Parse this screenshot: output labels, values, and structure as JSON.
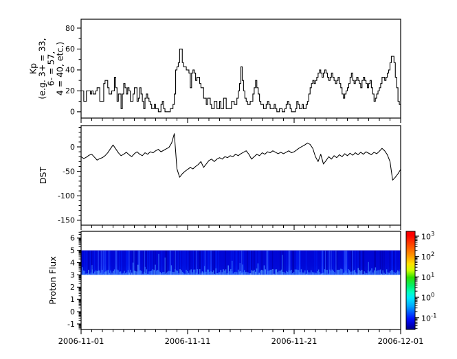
{
  "xaxis": {
    "tick_labels": [
      "2006-11-01",
      "2006-11-11",
      "2006-11-21",
      "2006-12-01"
    ],
    "tick_positions_days": [
      0,
      10,
      20,
      30
    ],
    "minor_every_days": 1,
    "span_days": 30
  },
  "chart_data": [
    {
      "type": "line",
      "subtype": "step",
      "name": "Kp",
      "ylabel_lines": [
        "Kp",
        "(e.g. 3+ = 33,",
        "6- = 57,",
        "4 = 40, etc.)"
      ],
      "ytick_values": [
        80,
        60,
        40,
        20,
        0
      ],
      "ytick_labels": [
        "80",
        "60",
        "40",
        "20",
        "0"
      ],
      "yminor_values": [
        10,
        30,
        50,
        70
      ],
      "ylim": [
        -6,
        88.5
      ],
      "x_start": "2006-11-01",
      "x_end": "2006-12-01",
      "samples_per_day": 8,
      "line_color": "#000000",
      "values": [
        20,
        20,
        10,
        10,
        20,
        20,
        20,
        17,
        20,
        17,
        17,
        20,
        23,
        23,
        10,
        10,
        10,
        27,
        30,
        30,
        23,
        17,
        17,
        20,
        20,
        33,
        23,
        10,
        17,
        17,
        3,
        17,
        27,
        23,
        17,
        23,
        20,
        10,
        10,
        17,
        23,
        23,
        10,
        13,
        23,
        17,
        10,
        3,
        13,
        17,
        13,
        10,
        7,
        3,
        3,
        7,
        3,
        3,
        0,
        0,
        7,
        10,
        3,
        0,
        0,
        0,
        0,
        3,
        3,
        7,
        17,
        40,
        43,
        47,
        60,
        60,
        47,
        43,
        43,
        40,
        40,
        37,
        23,
        37,
        40,
        37,
        30,
        33,
        33,
        27,
        23,
        23,
        13,
        13,
        7,
        13,
        13,
        7,
        3,
        3,
        10,
        10,
        3,
        3,
        10,
        3,
        3,
        13,
        13,
        3,
        3,
        3,
        3,
        10,
        10,
        7,
        7,
        13,
        20,
        27,
        43,
        30,
        20,
        13,
        10,
        7,
        7,
        10,
        10,
        17,
        23,
        30,
        23,
        17,
        10,
        7,
        7,
        3,
        3,
        7,
        10,
        7,
        3,
        3,
        3,
        7,
        3,
        0,
        0,
        3,
        3,
        0,
        0,
        3,
        7,
        10,
        7,
        3,
        0,
        0,
        0,
        3,
        10,
        7,
        3,
        3,
        7,
        3,
        3,
        7,
        10,
        17,
        23,
        27,
        30,
        27,
        30,
        33,
        37,
        40,
        37,
        33,
        37,
        40,
        37,
        33,
        30,
        33,
        37,
        33,
        30,
        27,
        30,
        33,
        27,
        23,
        17,
        13,
        17,
        20,
        23,
        27,
        33,
        37,
        30,
        27,
        30,
        33,
        30,
        27,
        23,
        30,
        33,
        30,
        27,
        23,
        27,
        30,
        23,
        17,
        10,
        13,
        17,
        20,
        23,
        27,
        33,
        33,
        30,
        33,
        37,
        40,
        47,
        53,
        53,
        47,
        33,
        23,
        10,
        7
      ]
    },
    {
      "type": "line",
      "name": "DST",
      "ylabel": "DST",
      "ytick_values": [
        0,
        -50,
        -100,
        -150
      ],
      "ytick_labels": [
        "0",
        "-50",
        "-100",
        "-150"
      ],
      "yminor_step": 10,
      "ylim": [
        -160,
        43.5
      ],
      "x_start": "2006-11-01",
      "x_end": "2006-12-01",
      "samples_per_day": 4,
      "line_color": "#000000",
      "values": [
        -20,
        -24,
        -21,
        -17,
        -15,
        -21,
        -27,
        -24,
        -22,
        -18,
        -12,
        -4,
        4,
        -4,
        -12,
        -18,
        -15,
        -11,
        -16,
        -20,
        -14,
        -10,
        -15,
        -18,
        -12,
        -15,
        -10,
        -12,
        -8,
        -5,
        -10,
        -7,
        -4,
        -1,
        8,
        27,
        -45,
        -62,
        -55,
        -50,
        -46,
        -42,
        -45,
        -40,
        -36,
        -30,
        -42,
        -35,
        -28,
        -25,
        -30,
        -25,
        -22,
        -25,
        -20,
        -22,
        -18,
        -20,
        -15,
        -18,
        -14,
        -11,
        -8,
        -15,
        -25,
        -20,
        -15,
        -18,
        -12,
        -15,
        -10,
        -12,
        -8,
        -11,
        -14,
        -11,
        -14,
        -11,
        -8,
        -12,
        -10,
        -6,
        -2,
        1,
        4,
        8,
        5,
        -3,
        -20,
        -30,
        -15,
        -35,
        -28,
        -20,
        -25,
        -18,
        -22,
        -16,
        -20,
        -14,
        -18,
        -13,
        -17,
        -12,
        -16,
        -11,
        -15,
        -10,
        -13,
        -16,
        -11,
        -14,
        -9,
        -3,
        -8,
        -16,
        -30,
        -68,
        -62,
        -55,
        -46
      ]
    },
    {
      "type": "heatmap",
      "name": "Proton Flux",
      "ylabel": "Proton Flux",
      "ytick_values": [
        6,
        5,
        4,
        3,
        2,
        1,
        0,
        -1
      ],
      "ytick_labels": [
        "6",
        "5",
        "4",
        "3",
        "2",
        "1",
        "0",
        "-1"
      ],
      "ylim": [
        -1.45,
        6.55
      ],
      "x_start": "2006-11-01",
      "x_end": "2006-12-01",
      "band": {
        "y_min": 3,
        "y_max": 5,
        "base_color": "#0008d8",
        "dark_color": "#0000b8",
        "streak_color": "#2a52ff",
        "fringe_color": "#3b82ff",
        "bright_fringe_color": "#5aa0ff"
      },
      "colorbar": {
        "scale": "log",
        "base": "10",
        "tick_exponents": [
          "3",
          "2",
          "1",
          "0",
          "-1"
        ],
        "tick_exponent_values": [
          3,
          2,
          1,
          0,
          -1
        ],
        "gradient_top_to_bottom": [
          [
            "0",
            "#ff0000"
          ],
          [
            "0.04",
            "#ff0000"
          ],
          [
            "0.15",
            "#ff5000"
          ],
          [
            "0.25",
            "#ff9800"
          ],
          [
            "0.33",
            "#ffe000"
          ],
          [
            "0.40",
            "#c8ff00"
          ],
          [
            "0.47",
            "#2ee000"
          ],
          [
            "0.56",
            "#00f070"
          ],
          [
            "0.62",
            "#00ffc0"
          ],
          [
            "0.68",
            "#00e8ff"
          ],
          [
            "0.76",
            "#00aaff"
          ],
          [
            "0.82",
            "#0060ff"
          ],
          [
            "0.89",
            "#0010ff"
          ],
          [
            "0.95",
            "#0000c8"
          ],
          [
            "1",
            "#000080"
          ]
        ]
      }
    }
  ]
}
